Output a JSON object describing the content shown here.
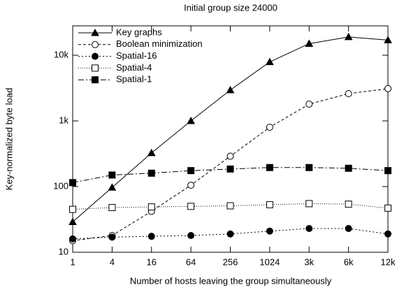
{
  "chart_data": {
    "type": "line",
    "title": "Initial group size 24000",
    "xlabel": "Number of hosts leaving the group simultaneously",
    "ylabel": "Key-normalized byte load",
    "categories": [
      "1",
      "4",
      "16",
      "64",
      "256",
      "1024",
      "3k",
      "6k",
      "12k"
    ],
    "ylog": true,
    "ylim": [
      10,
      28000
    ],
    "yticks": [
      10,
      100,
      {
        "value": 1000,
        "label": "1k"
      },
      {
        "value": 10000,
        "label": "10k"
      }
    ],
    "legend": "upper left",
    "series": [
      {
        "name": "Key graphs",
        "color": "#000000",
        "marker": "filled-triangle",
        "dash": "none",
        "values": [
          29,
          97,
          325,
          1000,
          2950,
          7900,
          15000,
          19000,
          17000
        ]
      },
      {
        "name": "Boolean minimization",
        "color": "#000000",
        "marker": "open-circle",
        "dash": "4,3",
        "values": [
          15,
          18,
          42,
          105,
          290,
          800,
          1800,
          2600,
          3100
        ]
      },
      {
        "name": "Spatial-16",
        "color": "#000000",
        "marker": "filled-circle",
        "dash": "2,3",
        "values": [
          16,
          17,
          17.5,
          18,
          19,
          21,
          23,
          23,
          19
        ]
      },
      {
        "name": "Spatial-4",
        "color": "#000000",
        "marker": "open-square",
        "dash": "1,2",
        "values": [
          45,
          48,
          49,
          50,
          51,
          53,
          55,
          54,
          47
        ]
      },
      {
        "name": "Spatial-1",
        "color": "#000000",
        "marker": "filled-square",
        "dash": "8,3,2,3",
        "values": [
          115,
          150,
          160,
          175,
          185,
          195,
          195,
          190,
          175
        ]
      }
    ]
  }
}
